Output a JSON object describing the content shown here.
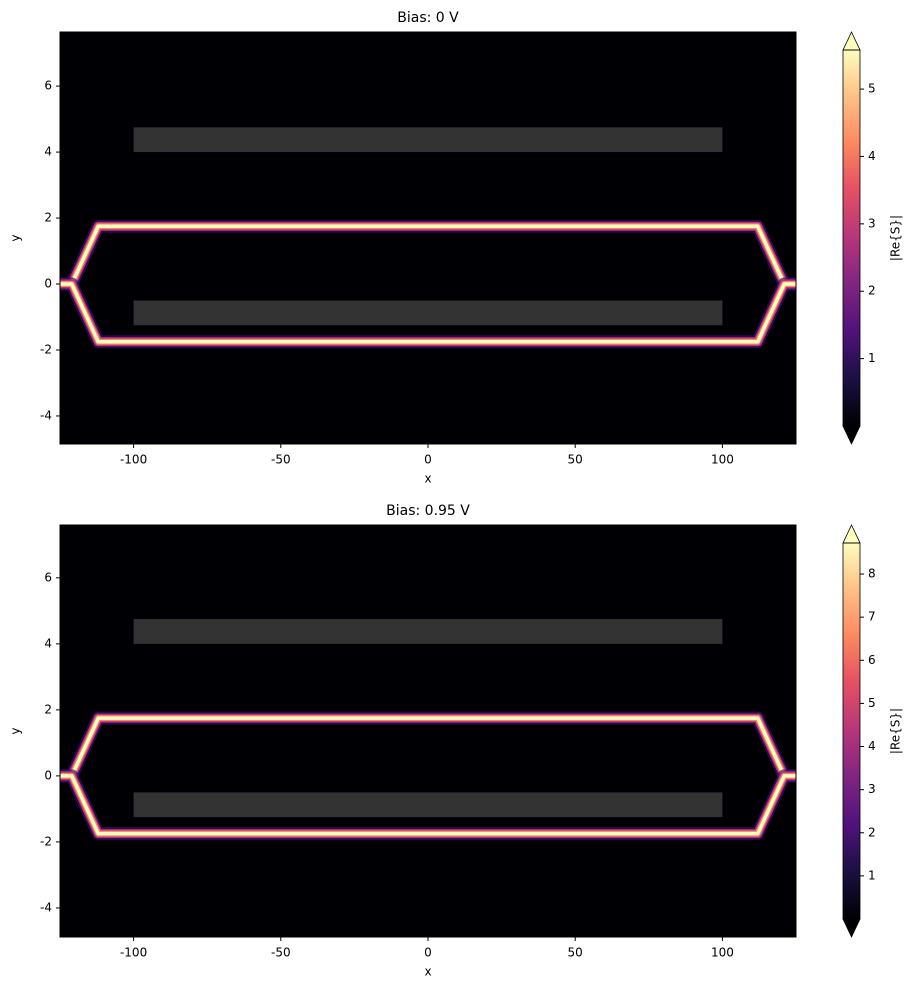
{
  "chart_data": [
    {
      "type": "heatmap",
      "title": "Bias: 0 V",
      "xlabel": "x",
      "ylabel": "y",
      "xlim": [
        -125,
        125
      ],
      "ylim": [
        -4.85,
        7.64
      ],
      "xticks": [
        -100,
        -50,
        0,
        50,
        100
      ],
      "yticks": [
        -4,
        -2,
        0,
        2,
        4,
        6
      ],
      "colormap": "magma",
      "clim": [
        0,
        5.58
      ],
      "cticks": [
        1,
        2,
        3,
        4,
        5
      ],
      "clabel": "|Re{S}|",
      "extend": "both",
      "rects": [
        {
          "x": [
            -100,
            100
          ],
          "y": [
            4,
            4.75
          ],
          "color": "#333333"
        },
        {
          "x": [
            -100,
            100
          ],
          "y": [
            -1.25,
            -0.5
          ],
          "color": "#333333"
        }
      ],
      "traces": [
        {
          "x": [
            -125,
            -121,
            -112,
            112,
            121,
            125
          ],
          "y": [
            0,
            0,
            1.75,
            1.75,
            0,
            0
          ]
        },
        {
          "x": [
            -125,
            -121,
            -112,
            112,
            121,
            125
          ],
          "y": [
            0,
            0,
            -1.75,
            -1.75,
            0,
            0
          ]
        }
      ]
    },
    {
      "type": "heatmap",
      "title": "Bias: 0.95 V",
      "xlabel": "x",
      "ylabel": "y",
      "xlim": [
        -125,
        125
      ],
      "ylim": [
        -4.88,
        7.6
      ],
      "xticks": [
        -100,
        -50,
        0,
        50,
        100
      ],
      "yticks": [
        -4,
        -2,
        0,
        2,
        4,
        6
      ],
      "colormap": "magma",
      "clim": [
        0,
        8.72
      ],
      "cticks": [
        1,
        2,
        3,
        4,
        5,
        6,
        7,
        8
      ],
      "clabel": "|Re{S}|",
      "extend": "both",
      "rects": [
        {
          "x": [
            -100,
            100
          ],
          "y": [
            4,
            4.75
          ],
          "color": "#333333"
        },
        {
          "x": [
            -100,
            100
          ],
          "y": [
            -1.25,
            -0.5
          ],
          "color": "#333333"
        }
      ],
      "traces": [
        {
          "x": [
            -125,
            -121,
            -112,
            112,
            121,
            125
          ],
          "y": [
            0,
            0,
            1.75,
            1.75,
            0,
            0
          ]
        },
        {
          "x": [
            -125,
            -121,
            -112,
            112,
            121,
            125
          ],
          "y": [
            0,
            0,
            -1.75,
            -1.75,
            0,
            0
          ]
        }
      ]
    }
  ]
}
